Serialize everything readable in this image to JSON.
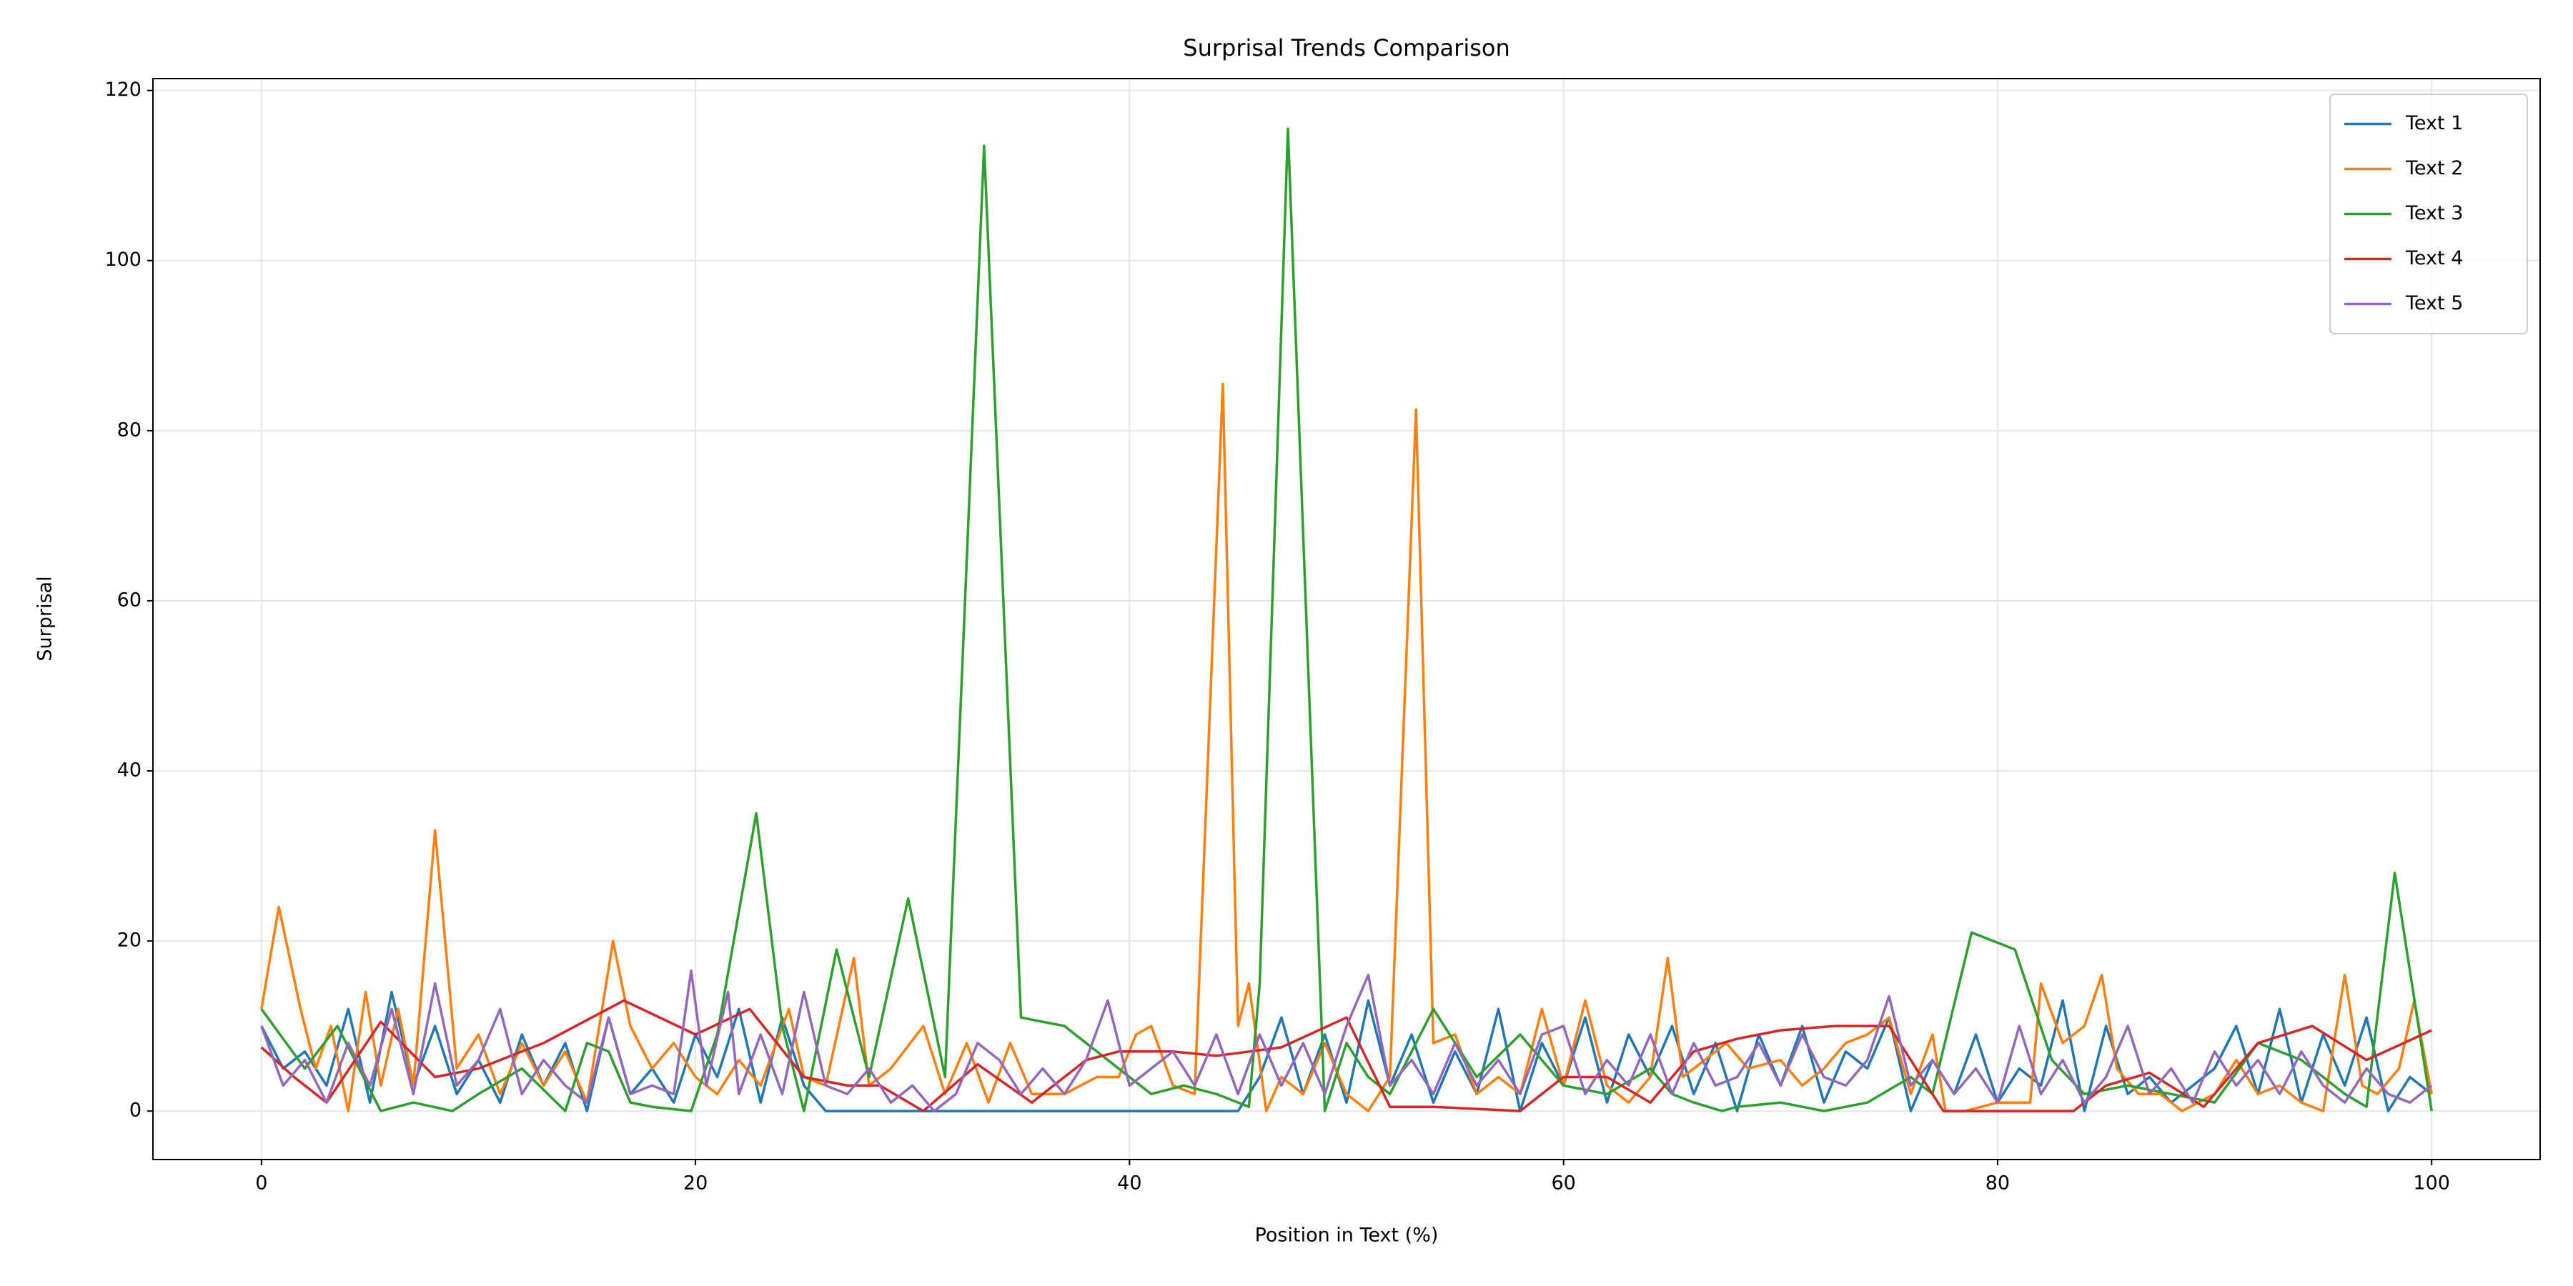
{
  "chart_data": {
    "type": "line",
    "title": "Surprisal Trends Comparison",
    "x_label": "Position in Text (%)",
    "y_label": "Surprisal",
    "xlim": [
      -5,
      105
    ],
    "ylim": [
      -5.7,
      121.4
    ],
    "xticks": [
      0,
      20,
      40,
      60,
      80,
      100
    ],
    "yticks": [
      0,
      20,
      40,
      60,
      80,
      100,
      120
    ],
    "grid": true,
    "legend": "upper right",
    "series": [
      {
        "name": "Text 1",
        "color": "#1f77b4",
        "x": [
          0,
          1,
          2,
          3,
          4,
          5,
          6,
          7,
          8,
          9,
          10,
          11,
          12,
          13,
          14,
          15,
          16,
          17,
          18,
          19,
          20,
          21,
          22,
          23,
          24,
          25,
          26,
          45,
          46,
          47,
          48,
          49,
          50,
          51,
          52,
          53,
          54,
          55,
          56,
          57,
          58,
          59,
          60,
          61,
          62,
          63,
          64,
          65,
          66,
          67,
          68,
          69,
          70,
          71,
          72,
          73,
          74,
          75,
          76,
          77,
          78,
          79,
          80,
          81,
          82,
          83,
          84,
          85,
          86,
          87,
          88,
          89,
          90,
          91,
          92,
          93,
          94,
          95,
          96,
          97,
          98,
          99,
          100
        ],
        "values": [
          10,
          5,
          7,
          3,
          12,
          1,
          14,
          3,
          10,
          2,
          6,
          1,
          9,
          3,
          8,
          0,
          11,
          2,
          5,
          1,
          9,
          4,
          12,
          1,
          11,
          3,
          0,
          0,
          4,
          11,
          2,
          9,
          1,
          13,
          3,
          9,
          1,
          7,
          2,
          12,
          0,
          8,
          3,
          11,
          1,
          9,
          4,
          10,
          2,
          8,
          0,
          9,
          3,
          10,
          1,
          7,
          5,
          11,
          0,
          6,
          2,
          9,
          1,
          5,
          3,
          13,
          0,
          10,
          2,
          4,
          1,
          3,
          5,
          10,
          2,
          12,
          1,
          9,
          3,
          11,
          0,
          4,
          2
        ]
      },
      {
        "name": "Text 2",
        "color": "#ff7f0e",
        "x": [
          0,
          0.8,
          1.8,
          2.5,
          3.2,
          4,
          4.8,
          5.5,
          6.3,
          7,
          8,
          9,
          10,
          11,
          12,
          13,
          14,
          15,
          16.2,
          17,
          18,
          19,
          20,
          21,
          22,
          23,
          24.3,
          25,
          26,
          27.3,
          28,
          29,
          30.5,
          31.5,
          32.5,
          33.5,
          34.5,
          35.5,
          37,
          38.5,
          39.5,
          40.3,
          41,
          42,
          43,
          44.3,
          45,
          45.5,
          46.3,
          47,
          48,
          49,
          50,
          51,
          52,
          53.2,
          54,
          55,
          56,
          57,
          58,
          59,
          60,
          61,
          62,
          63,
          64,
          64.8,
          65.5,
          66.5,
          67.5,
          68.5,
          70,
          71,
          72,
          73,
          74,
          75,
          76,
          77,
          77.6,
          78.5,
          80,
          81.5,
          82,
          83,
          84,
          84.8,
          85.5,
          86.5,
          87.5,
          88.5,
          90,
          91,
          92,
          93,
          94,
          95,
          96,
          96.8,
          97.5,
          98.5,
          99.2,
          100
        ],
        "values": [
          12,
          24,
          12,
          5,
          10,
          0,
          14,
          3,
          12,
          3,
          33,
          5,
          9,
          2,
          8,
          3,
          7,
          1,
          20,
          10,
          5,
          8,
          4,
          2,
          6,
          3,
          12,
          4,
          3,
          18,
          3,
          5,
          10,
          2,
          8,
          1,
          8,
          2,
          2,
          4,
          4,
          9,
          10,
          3,
          2,
          85.5,
          10,
          15,
          0,
          4,
          2,
          8,
          2,
          0,
          4,
          82.5,
          8,
          9,
          2,
          4,
          2,
          12,
          3,
          13,
          3,
          1,
          4,
          18,
          4,
          6,
          8,
          5,
          6,
          3,
          5,
          8,
          9,
          11,
          2,
          9,
          0,
          0,
          1,
          1,
          15,
          8,
          10,
          16,
          5,
          2,
          2,
          0,
          2,
          6,
          2,
          3,
          1,
          0,
          16,
          3,
          2,
          5,
          13,
          2
        ]
      },
      {
        "name": "Text 3",
        "color": "#2ca02c",
        "x": [
          0,
          2,
          3.5,
          5.5,
          7,
          8.8,
          10,
          12,
          14,
          15,
          16,
          17,
          18,
          19.8,
          21,
          22.8,
          24,
          25,
          26.5,
          28,
          29.8,
          31.5,
          33.3,
          35,
          37,
          39,
          41,
          42.5,
          44,
          45.5,
          46,
          47.3,
          49,
          50,
          51,
          52,
          54,
          56,
          58,
          60,
          62,
          64,
          65,
          66,
          67.3,
          68,
          70,
          72,
          74,
          76,
          77,
          78.8,
          80.8,
          82.5,
          84,
          86,
          88,
          90,
          92,
          94,
          96,
          97,
          98.3,
          100
        ],
        "values": [
          12,
          5,
          10,
          0,
          1,
          0,
          2,
          5,
          0,
          8,
          7,
          1,
          0.5,
          0,
          9,
          35,
          10,
          0,
          19,
          4,
          25,
          4,
          113.5,
          11,
          10,
          6,
          2,
          3,
          2,
          0.5,
          15,
          115.5,
          0,
          8,
          4,
          2,
          12,
          4,
          9,
          3,
          2,
          5,
          2,
          1,
          0,
          0.5,
          1,
          0,
          1,
          4,
          2,
          21,
          19,
          6,
          2,
          3,
          2,
          1,
          8,
          6,
          2,
          0.5,
          28,
          0
        ]
      },
      {
        "name": "Text 4",
        "color": "#d62728",
        "x": [
          0,
          1.5,
          3,
          5.5,
          8,
          10,
          13,
          16.7,
          20,
          22.5,
          25,
          27,
          28.5,
          30.5,
          33,
          35.5,
          38,
          39.5,
          42,
          44,
          47,
          50,
          52,
          54,
          58,
          60,
          62,
          64,
          66,
          68,
          70,
          72.5,
          75,
          77.5,
          81,
          83.5,
          85,
          87,
          89.5,
          92,
          94.5,
          97,
          100
        ],
        "values": [
          7.5,
          4,
          1,
          10.5,
          4,
          5,
          8,
          13,
          9,
          12,
          4,
          3,
          3,
          0,
          5.5,
          1,
          6,
          7,
          7,
          6.5,
          7.5,
          11,
          0.5,
          0.5,
          0,
          4,
          4,
          1,
          7,
          8.5,
          9.5,
          10,
          10,
          0,
          0,
          0,
          3,
          4.5,
          0.5,
          8,
          10,
          6,
          9.5
        ]
      },
      {
        "name": "Text 5",
        "color": "#9467bd",
        "x": [
          0,
          1,
          2,
          3,
          4,
          5,
          6,
          7,
          8,
          9,
          10,
          11,
          12,
          13,
          14,
          15,
          16,
          17,
          18,
          19,
          19.8,
          20.5,
          21.5,
          22,
          23,
          24,
          25,
          26,
          27,
          28,
          29,
          30,
          31,
          32,
          33,
          34,
          35,
          36,
          37,
          38,
          39,
          40,
          41,
          42,
          43,
          44,
          45,
          46,
          47,
          48,
          49,
          50,
          51,
          52,
          53,
          54,
          55,
          56,
          57,
          58,
          59,
          60,
          61,
          62,
          63,
          64,
          65,
          66,
          67,
          68,
          69,
          70,
          71,
          72,
          73,
          74,
          75,
          76,
          77,
          78,
          79,
          80,
          81,
          82,
          83,
          84,
          85,
          86,
          87,
          88,
          89,
          90,
          91,
          92,
          93,
          94,
          95,
          96,
          97,
          98,
          99,
          100
        ],
        "values": [
          10,
          3,
          6,
          1,
          8,
          3,
          12,
          2,
          15,
          3,
          6,
          12,
          2,
          6,
          3,
          1,
          11,
          2,
          3,
          2,
          16.5,
          3,
          14,
          2,
          9,
          2,
          14,
          3,
          2,
          5,
          1,
          3,
          0,
          2,
          8,
          6,
          2,
          5,
          2,
          6,
          13,
          3,
          5,
          7,
          3,
          9,
          2,
          9,
          3,
          8,
          2,
          10,
          16,
          3,
          6,
          2,
          8,
          3,
          6,
          2,
          9,
          10,
          2,
          6,
          3,
          9,
          2,
          8,
          3,
          4,
          8,
          3,
          9,
          4,
          3,
          6,
          13.5,
          3,
          6,
          2,
          5,
          1,
          10,
          2,
          6,
          1,
          4,
          10,
          2,
          5,
          1,
          7,
          3,
          6,
          2,
          7,
          3,
          1,
          5,
          2,
          1,
          3
        ]
      }
    ]
  }
}
